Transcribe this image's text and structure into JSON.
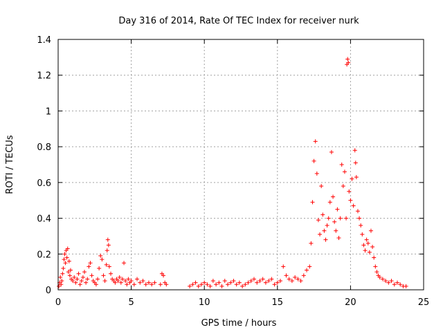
{
  "chart_data": {
    "type": "scatter",
    "title": "Day 316 of 2014, Rate Of TEC Index for receiver nurk",
    "xlabel": "GPS time / hours",
    "ylabel": "ROTI / TECUs",
    "xlim": [
      0,
      25
    ],
    "ylim": [
      0,
      1.4
    ],
    "xticks": [
      0,
      5,
      10,
      15,
      20,
      25
    ],
    "yticks": [
      0,
      0.2,
      0.4,
      0.6,
      0.8,
      1,
      1.2,
      1.4
    ],
    "xtick_labels": [
      "0",
      "5",
      "10",
      "15",
      "20",
      "25"
    ],
    "ytick_labels": [
      "0",
      "0.2",
      "0.4",
      "0.6",
      "0.8",
      "1",
      "1.2",
      "1.4"
    ],
    "grid": true,
    "legend": "none",
    "marker": "+",
    "color": "#ff0000",
    "series": [
      {
        "points": [
          [
            0.05,
            0.02
          ],
          [
            0.1,
            0.04
          ],
          [
            0.15,
            0.07
          ],
          [
            0.2,
            0.03
          ],
          [
            0.25,
            0.05
          ],
          [
            0.3,
            0.09
          ],
          [
            0.35,
            0.12
          ],
          [
            0.4,
            0.17
          ],
          [
            0.45,
            0.2
          ],
          [
            0.5,
            0.15
          ],
          [
            0.55,
            0.22
          ],
          [
            0.6,
            0.18
          ],
          [
            0.65,
            0.23
          ],
          [
            0.7,
            0.1
          ],
          [
            0.75,
            0.16
          ],
          [
            0.8,
            0.08
          ],
          [
            0.85,
            0.11
          ],
          [
            0.9,
            0.06
          ],
          [
            1.0,
            0.05
          ],
          [
            1.1,
            0.07
          ],
          [
            1.2,
            0.04
          ],
          [
            1.3,
            0.06
          ],
          [
            1.4,
            0.09
          ],
          [
            1.5,
            0.03
          ],
          [
            1.6,
            0.05
          ],
          [
            1.7,
            0.07
          ],
          [
            1.8,
            0.1
          ],
          [
            1.9,
            0.04
          ],
          [
            2.0,
            0.06
          ],
          [
            2.1,
            0.13
          ],
          [
            2.2,
            0.15
          ],
          [
            2.3,
            0.08
          ],
          [
            2.4,
            0.05
          ],
          [
            2.5,
            0.04
          ],
          [
            2.6,
            0.03
          ],
          [
            2.7,
            0.06
          ],
          [
            2.8,
            0.12
          ],
          [
            2.9,
            0.19
          ],
          [
            3.0,
            0.17
          ],
          [
            3.1,
            0.08
          ],
          [
            3.2,
            0.05
          ],
          [
            3.3,
            0.14
          ],
          [
            3.35,
            0.22
          ],
          [
            3.4,
            0.28
          ],
          [
            3.45,
            0.25
          ],
          [
            3.5,
            0.13
          ],
          [
            3.6,
            0.09
          ],
          [
            3.7,
            0.06
          ],
          [
            3.8,
            0.05
          ],
          [
            3.9,
            0.04
          ],
          [
            4.0,
            0.06
          ],
          [
            4.1,
            0.05
          ],
          [
            4.2,
            0.07
          ],
          [
            4.3,
            0.04
          ],
          [
            4.4,
            0.06
          ],
          [
            4.5,
            0.15
          ],
          [
            4.6,
            0.05
          ],
          [
            4.7,
            0.03
          ],
          [
            4.8,
            0.06
          ],
          [
            4.9,
            0.04
          ],
          [
            5.0,
            0.05
          ],
          [
            5.2,
            0.03
          ],
          [
            5.4,
            0.06
          ],
          [
            5.6,
            0.04
          ],
          [
            5.8,
            0.05
          ],
          [
            6.0,
            0.03
          ],
          [
            6.2,
            0.04
          ],
          [
            6.4,
            0.03
          ],
          [
            6.6,
            0.04
          ],
          [
            7.0,
            0.03
          ],
          [
            7.1,
            0.09
          ],
          [
            7.2,
            0.08
          ],
          [
            7.3,
            0.04
          ],
          [
            7.4,
            0.03
          ],
          [
            9.0,
            0.02
          ],
          [
            9.2,
            0.03
          ],
          [
            9.4,
            0.04
          ],
          [
            9.6,
            0.02
          ],
          [
            9.8,
            0.03
          ],
          [
            10.0,
            0.04
          ],
          [
            10.2,
            0.03
          ],
          [
            10.4,
            0.02
          ],
          [
            10.6,
            0.05
          ],
          [
            10.8,
            0.03
          ],
          [
            11.0,
            0.04
          ],
          [
            11.2,
            0.02
          ],
          [
            11.4,
            0.05
          ],
          [
            11.6,
            0.03
          ],
          [
            11.8,
            0.04
          ],
          [
            12.0,
            0.05
          ],
          [
            12.2,
            0.03
          ],
          [
            12.4,
            0.04
          ],
          [
            12.6,
            0.02
          ],
          [
            12.8,
            0.03
          ],
          [
            13.0,
            0.04
          ],
          [
            13.2,
            0.05
          ],
          [
            13.4,
            0.06
          ],
          [
            13.6,
            0.04
          ],
          [
            13.8,
            0.05
          ],
          [
            14.0,
            0.06
          ],
          [
            14.2,
            0.04
          ],
          [
            14.4,
            0.05
          ],
          [
            14.6,
            0.06
          ],
          [
            14.8,
            0.03
          ],
          [
            15.0,
            0.04
          ],
          [
            15.2,
            0.05
          ],
          [
            15.4,
            0.13
          ],
          [
            15.6,
            0.08
          ],
          [
            15.8,
            0.06
          ],
          [
            16.0,
            0.05
          ],
          [
            16.2,
            0.07
          ],
          [
            16.4,
            0.06
          ],
          [
            16.6,
            0.05
          ],
          [
            16.8,
            0.08
          ],
          [
            17.0,
            0.11
          ],
          [
            17.2,
            0.13
          ],
          [
            17.3,
            0.26
          ],
          [
            17.4,
            0.49
          ],
          [
            17.5,
            0.72
          ],
          [
            17.6,
            0.83
          ],
          [
            17.7,
            0.65
          ],
          [
            17.8,
            0.39
          ],
          [
            17.9,
            0.31
          ],
          [
            18.0,
            0.58
          ],
          [
            18.1,
            0.42
          ],
          [
            18.2,
            0.33
          ],
          [
            18.3,
            0.28
          ],
          [
            18.4,
            0.36
          ],
          [
            18.5,
            0.4
          ],
          [
            18.6,
            0.49
          ],
          [
            18.7,
            0.77
          ],
          [
            18.8,
            0.52
          ],
          [
            18.9,
            0.38
          ],
          [
            19.0,
            0.33
          ],
          [
            19.1,
            0.45
          ],
          [
            19.2,
            0.29
          ],
          [
            19.3,
            0.4
          ],
          [
            19.4,
            0.7
          ],
          [
            19.5,
            0.58
          ],
          [
            19.6,
            0.66
          ],
          [
            19.7,
            0.4
          ],
          [
            19.75,
            1.26
          ],
          [
            19.8,
            1.29
          ],
          [
            19.85,
            1.27
          ],
          [
            19.9,
            0.55
          ],
          [
            20.0,
            0.5
          ],
          [
            20.1,
            0.62
          ],
          [
            20.2,
            0.47
          ],
          [
            20.3,
            0.78
          ],
          [
            20.35,
            0.71
          ],
          [
            20.4,
            0.63
          ],
          [
            20.5,
            0.44
          ],
          [
            20.6,
            0.4
          ],
          [
            20.7,
            0.36
          ],
          [
            20.8,
            0.31
          ],
          [
            20.9,
            0.25
          ],
          [
            21.0,
            0.22
          ],
          [
            21.1,
            0.28
          ],
          [
            21.2,
            0.26
          ],
          [
            21.3,
            0.21
          ],
          [
            21.4,
            0.33
          ],
          [
            21.5,
            0.24
          ],
          [
            21.6,
            0.18
          ],
          [
            21.7,
            0.13
          ],
          [
            21.8,
            0.1
          ],
          [
            21.9,
            0.08
          ],
          [
            22.0,
            0.07
          ],
          [
            22.2,
            0.06
          ],
          [
            22.4,
            0.05
          ],
          [
            22.6,
            0.04
          ],
          [
            22.8,
            0.05
          ],
          [
            23.0,
            0.03
          ],
          [
            23.2,
            0.04
          ],
          [
            23.4,
            0.03
          ],
          [
            23.6,
            0.02
          ],
          [
            23.8,
            0.02
          ]
        ]
      }
    ]
  }
}
